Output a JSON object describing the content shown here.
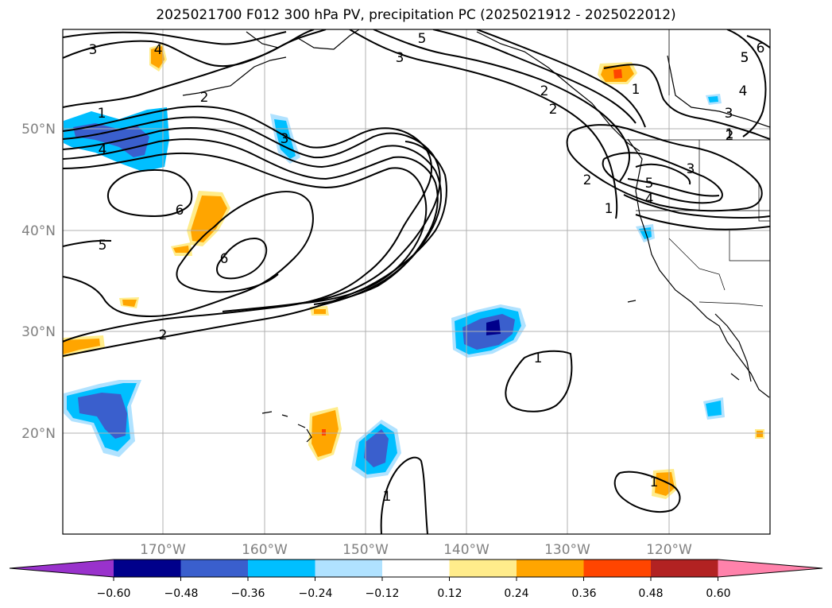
{
  "title": "2025021700 F012 300 hPa PV, precipitation PC (2025021912 - 2025022012)",
  "map": {
    "lat_labels": [
      "50°N",
      "40°N",
      "30°N",
      "20°N"
    ],
    "lon_labels": [
      "170°W",
      "160°W",
      "150°W",
      "140°W",
      "130°W",
      "120°W"
    ],
    "label_color": "#808080",
    "grid_color": "#b0b0b0",
    "contour_color": "#000000",
    "contour_labels": [
      "3",
      "4",
      "5",
      "5",
      "3",
      "2",
      "1",
      "4",
      "2",
      "3",
      "6",
      "5",
      "6",
      "2",
      "2",
      "1",
      "2",
      "1",
      "3",
      "4",
      "5",
      "1",
      "1",
      "1",
      "1",
      "2",
      "3",
      "5",
      "4",
      "6"
    ]
  },
  "colorbar": {
    "ticks": [
      "−0.60",
      "−0.48",
      "−0.36",
      "−0.24",
      "−0.12",
      "0.12",
      "0.24",
      "0.36",
      "0.48",
      "0.60"
    ],
    "colors": [
      "#9932cc",
      "#00008b",
      "#3a5fcd",
      "#00bfff",
      "#b0e2ff",
      "#ffffff",
      "#ffec8b",
      "#ffa500",
      "#ff4500",
      "#b22222",
      "#ff82ab"
    ]
  }
}
